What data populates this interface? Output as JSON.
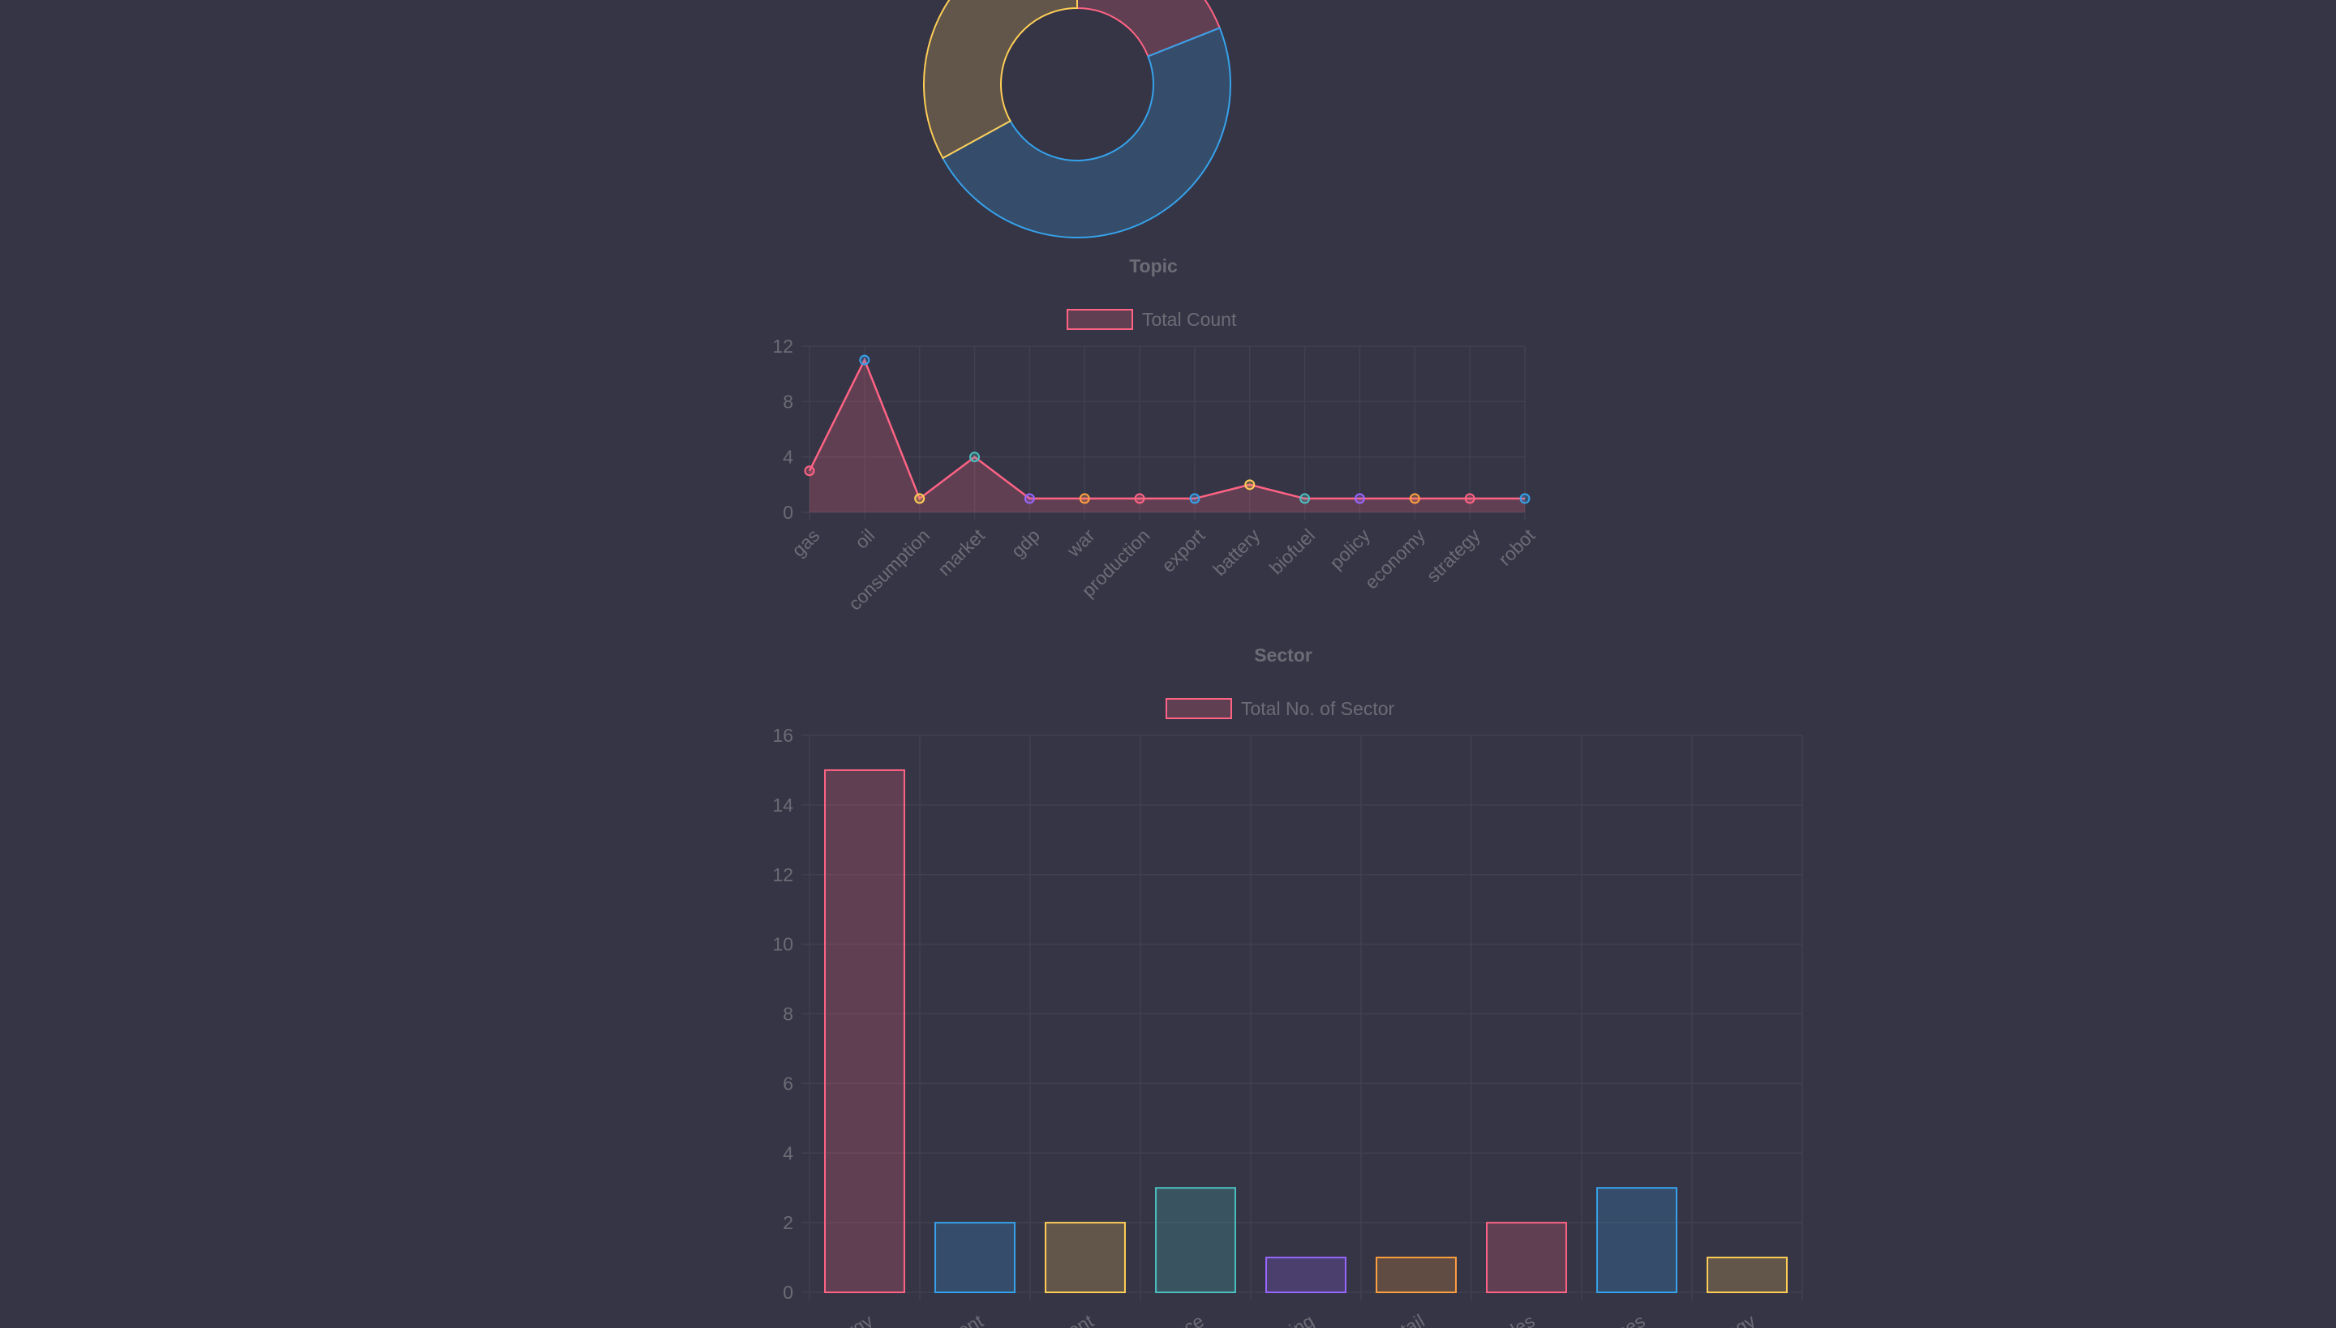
{
  "chart_data": [
    {
      "type": "pie",
      "style": "doughnut",
      "title": "",
      "categories": [
        "",
        "",
        ""
      ],
      "values": [
        19,
        48,
        33
      ],
      "colors": [
        "#ff6384",
        "#36a2eb",
        "#ffce56"
      ],
      "note": "top of chart cropped in screenshot"
    },
    {
      "type": "line",
      "title": "Topic",
      "legend": "Total Count",
      "xlabel": "",
      "ylabel": "",
      "categories": [
        "gas",
        "oil",
        "consumption",
        "market",
        "gdp",
        "war",
        "production",
        "export",
        "battery",
        "biofuel",
        "policy",
        "economy",
        "strategy",
        "robot"
      ],
      "values": [
        3,
        11,
        1,
        4,
        1,
        1,
        1,
        1,
        2,
        1,
        1,
        1,
        1,
        1
      ],
      "point_colors": [
        "#ff6384",
        "#36a2eb",
        "#ffce56",
        "#4bc0c0",
        "#9966ff",
        "#ff9f40",
        "#ff6384",
        "#36a2eb",
        "#ffce56",
        "#4bc0c0",
        "#9966ff",
        "#ff9f40",
        "#ff6384",
        "#36a2eb"
      ],
      "ylim": [
        0,
        12
      ],
      "yticks": [
        "0",
        "4",
        "8",
        "12"
      ],
      "grid": true,
      "legend_position": "top"
    },
    {
      "type": "bar",
      "title": "Sector",
      "legend": "Total No. of Sector",
      "xlabel": "",
      "ylabel": "",
      "categories": [
        "rgy",
        "ent",
        "ent",
        "ace",
        "ing",
        "tail",
        "cles",
        "ces",
        "ogy"
      ],
      "values": [
        15,
        2,
        2,
        3,
        1,
        1,
        2,
        3,
        1
      ],
      "bar_colors": [
        "#ff6384",
        "#36a2eb",
        "#ffce56",
        "#4bc0c0",
        "#9966ff",
        "#ff9f40",
        "#ff6384",
        "#36a2eb",
        "#ffce56"
      ],
      "ylim": [
        0,
        16
      ],
      "yticks": [
        "0",
        "2",
        "4",
        "6",
        "8",
        "10",
        "12",
        "14",
        "16"
      ],
      "grid": true,
      "legend_position": "top",
      "note": "x tick labels cut off at the bottom of the screenshot"
    }
  ],
  "colors": {
    "background": "#353546",
    "text": "#6c6c76",
    "grid": "#40404f"
  }
}
